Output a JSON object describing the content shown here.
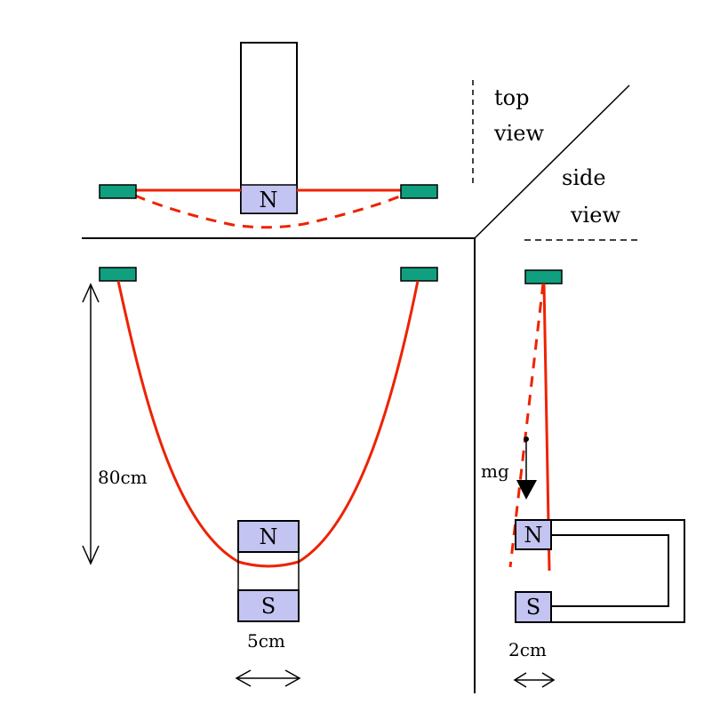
{
  "labels": {
    "top_view": [
      "top",
      "view"
    ],
    "side_view": [
      "side",
      "view"
    ],
    "height": "80cm",
    "width_front": "5cm",
    "width_side": "2cm",
    "weight": "mg"
  },
  "poles": {
    "north": "N",
    "south": "S"
  },
  "colors": {
    "string": "#ee2200",
    "clamp_fill": "#10a080",
    "magnet_fill": "#c4c4f2",
    "line": "#000000"
  }
}
